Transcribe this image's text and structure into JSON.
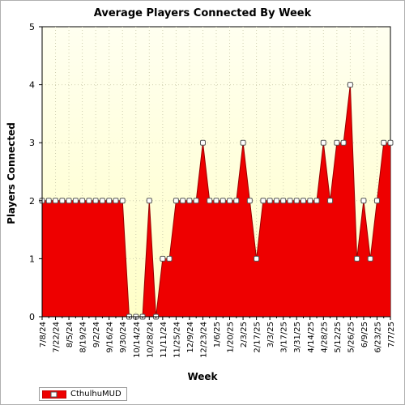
{
  "chart_data": {
    "type": "area",
    "title": "Average Players Connected By Week",
    "xlabel": "Week",
    "ylabel": "Players Connected",
    "ylim": [
      0,
      5
    ],
    "yticks": [
      0,
      1,
      2,
      3,
      4,
      5
    ],
    "grid": true,
    "legend": "bottom-left",
    "x": [
      "7/8/24",
      "7/15/24",
      "7/22/24",
      "7/29/24",
      "8/5/24",
      "8/12/24",
      "8/19/24",
      "8/26/24",
      "9/2/24",
      "9/9/24",
      "9/16/24",
      "9/23/24",
      "9/30/24",
      "10/7/24",
      "10/14/24",
      "10/21/24",
      "10/28/24",
      "11/4/24",
      "11/11/24",
      "11/18/24",
      "11/25/24",
      "12/2/24",
      "12/9/24",
      "12/16/24",
      "12/23/24",
      "12/30/24",
      "1/6/25",
      "1/13/25",
      "1/20/25",
      "1/27/25",
      "2/3/25",
      "2/10/25",
      "2/17/25",
      "2/24/25",
      "3/3/25",
      "3/10/25",
      "3/17/25",
      "3/24/25",
      "3/31/25",
      "4/7/25",
      "4/14/25",
      "4/21/25",
      "4/28/25",
      "5/5/25",
      "5/12/25",
      "5/19/25",
      "5/26/25",
      "6/2/25",
      "6/9/25",
      "6/16/25",
      "6/23/25",
      "6/30/25",
      "7/7/25"
    ],
    "xticks": [
      "7/8/24",
      "7/22/24",
      "8/5/24",
      "8/19/24",
      "9/2/24",
      "9/16/24",
      "9/30/24",
      "10/14/24",
      "10/28/24",
      "11/11/24",
      "11/25/24",
      "12/9/24",
      "12/23/24",
      "1/6/25",
      "1/20/25",
      "2/3/25",
      "2/17/25",
      "3/3/25",
      "3/17/25",
      "3/31/25",
      "4/14/25",
      "4/28/25",
      "5/12/25",
      "5/26/25",
      "6/9/25",
      "6/23/25",
      "7/7/25"
    ],
    "series": [
      {
        "name": "CthulhuMUD",
        "color": "#ee0000",
        "values": [
          2,
          2,
          2,
          2,
          2,
          2,
          2,
          2,
          2,
          2,
          2,
          2,
          2,
          0,
          0,
          0,
          2,
          0,
          1,
          1,
          2,
          2,
          2,
          2,
          3,
          2,
          2,
          2,
          2,
          2,
          3,
          2,
          1,
          2,
          2,
          2,
          2,
          2,
          2,
          2,
          2,
          2,
          3,
          2,
          3,
          3,
          4,
          1,
          2,
          1,
          2,
          3,
          3
        ]
      }
    ]
  },
  "colors": {
    "plot_bg_top": "#fffff0",
    "plot_bg_bottom": "#ffffc8",
    "fill": "#ee0000",
    "line": "#990000"
  }
}
